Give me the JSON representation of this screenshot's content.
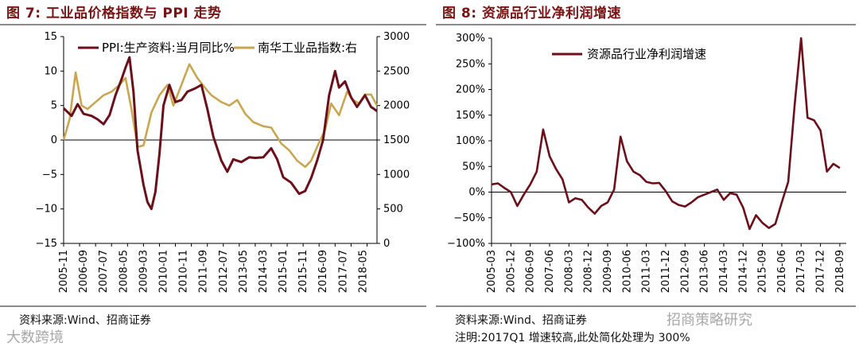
{
  "left": {
    "title": "图 7:  工业品价格指数与 PPI 走势",
    "source": "资料来源:Wind、招商证券",
    "watermark": "大数跨境"
  },
  "right": {
    "title": "图 8:  资源品行业净利润增速",
    "source": "资料来源:Wind、招商证券",
    "note": "注明:2017Q1 增速较高,此处简化处理为 300%",
    "watermark": "招商策略研究"
  },
  "colors": {
    "ppi": "#6b0f1a",
    "nanhua": "#c9a650",
    "profit": "#6b0f1a",
    "title": "#7a1414"
  },
  "chart_data": [
    {
      "type": "line",
      "title": "图 7:  工业品价格指数与 PPI 走势",
      "xlabel": "",
      "x_ticks": [
        "2005-11",
        "2006-07",
        "2007-03",
        "2007-11",
        "2008-07",
        "2009-03",
        "2009-11",
        "2010-07",
        "2011-03",
        "2011-11",
        "2012-07",
        "2013-03",
        "2013-11",
        "2014-07",
        "2015-03",
        "2015-11",
        "2016-07",
        "2017-03",
        "2017-11",
        "2018-07"
      ],
      "x_tick_labels": [
        "2005-11",
        "2006-09",
        "2007-07",
        "2008-05",
        "2009-03",
        "2010-01",
        "2010-11",
        "2011-09",
        "2012-07",
        "2013-05",
        "2014-03",
        "2015-01",
        "2015-11",
        "2016-09",
        "2017-07",
        "2018-05"
      ],
      "x_range": [
        "2005-11",
        "2018-12"
      ],
      "left_axis": {
        "ylim": [
          -15,
          15
        ],
        "ticks": [
          "15",
          "10",
          "5",
          "0",
          "−5",
          "−10",
          "−15"
        ]
      },
      "right_axis": {
        "ylim": [
          0,
          3000
        ],
        "ticks": [
          "3000",
          "2500",
          "2000",
          "1500",
          "1000",
          "500",
          "0"
        ]
      },
      "legend": "top-left",
      "series": [
        {
          "name": "PPI:生产资料:当月同比%",
          "axis": "left",
          "points": [
            [
              "2005-11",
              4.6
            ],
            [
              "2006-03",
              3.5
            ],
            [
              "2006-06",
              5.2
            ],
            [
              "2006-09",
              3.8
            ],
            [
              "2007-01",
              3.5
            ],
            [
              "2007-04",
              3.0
            ],
            [
              "2007-07",
              2.3
            ],
            [
              "2007-10",
              3.6
            ],
            [
              "2008-01",
              6.5
            ],
            [
              "2008-04",
              8.8
            ],
            [
              "2008-06",
              10.5
            ],
            [
              "2008-08",
              12.0
            ],
            [
              "2008-10",
              7.0
            ],
            [
              "2008-12",
              -1.5
            ],
            [
              "2009-03",
              -6.5
            ],
            [
              "2009-05",
              -9.0
            ],
            [
              "2009-07",
              -10.0
            ],
            [
              "2009-09",
              -7.5
            ],
            [
              "2009-11",
              -2.0
            ],
            [
              "2010-01",
              5.0
            ],
            [
              "2010-04",
              8.0
            ],
            [
              "2010-07",
              5.5
            ],
            [
              "2010-10",
              5.8
            ],
            [
              "2011-01",
              7.0
            ],
            [
              "2011-05",
              7.5
            ],
            [
              "2011-08",
              8.0
            ],
            [
              "2011-11",
              4.5
            ],
            [
              "2012-02",
              0.5
            ],
            [
              "2012-06",
              -3.0
            ],
            [
              "2012-09",
              -4.6
            ],
            [
              "2012-12",
              -2.8
            ],
            [
              "2013-04",
              -3.2
            ],
            [
              "2013-08",
              -2.5
            ],
            [
              "2013-11",
              -2.6
            ],
            [
              "2014-03",
              -2.5
            ],
            [
              "2014-07",
              -1.2
            ],
            [
              "2014-10",
              -2.8
            ],
            [
              "2015-01",
              -5.4
            ],
            [
              "2015-05",
              -6.2
            ],
            [
              "2015-09",
              -7.8
            ],
            [
              "2015-12",
              -7.4
            ],
            [
              "2016-03",
              -5.5
            ],
            [
              "2016-06",
              -3.0
            ],
            [
              "2016-09",
              0.0
            ],
            [
              "2016-12",
              6.5
            ],
            [
              "2017-03",
              10.0
            ],
            [
              "2017-05",
              7.6
            ],
            [
              "2017-08",
              8.5
            ],
            [
              "2017-11",
              6.2
            ],
            [
              "2018-02",
              4.8
            ],
            [
              "2018-06",
              6.5
            ],
            [
              "2018-09",
              4.8
            ],
            [
              "2018-12",
              4.2
            ]
          ]
        },
        {
          "name": "南华工业品指数:右",
          "axis": "right",
          "points": [
            [
              "2005-11",
              1500
            ],
            [
              "2006-02",
              1800
            ],
            [
              "2006-05",
              2480
            ],
            [
              "2006-08",
              2000
            ],
            [
              "2006-11",
              1950
            ],
            [
              "2007-03",
              2050
            ],
            [
              "2007-07",
              2150
            ],
            [
              "2007-11",
              2200
            ],
            [
              "2008-03",
              2300
            ],
            [
              "2008-06",
              2400
            ],
            [
              "2008-09",
              1950
            ],
            [
              "2008-12",
              1400
            ],
            [
              "2009-03",
              1420
            ],
            [
              "2009-07",
              1900
            ],
            [
              "2009-11",
              2150
            ],
            [
              "2010-03",
              2300
            ],
            [
              "2010-06",
              2000
            ],
            [
              "2010-10",
              2300
            ],
            [
              "2011-02",
              2600
            ],
            [
              "2011-06",
              2400
            ],
            [
              "2011-10",
              2250
            ],
            [
              "2012-01",
              2150
            ],
            [
              "2012-06",
              2050
            ],
            [
              "2012-10",
              2000
            ],
            [
              "2013-02",
              2080
            ],
            [
              "2013-06",
              1880
            ],
            [
              "2013-10",
              1760
            ],
            [
              "2014-03",
              1700
            ],
            [
              "2014-07",
              1680
            ],
            [
              "2014-12",
              1450
            ],
            [
              "2015-04",
              1350
            ],
            [
              "2015-08",
              1200
            ],
            [
              "2015-12",
              1110
            ],
            [
              "2016-03",
              1200
            ],
            [
              "2016-06",
              1400
            ],
            [
              "2016-10",
              1650
            ],
            [
              "2017-01",
              2030
            ],
            [
              "2017-05",
              1860
            ],
            [
              "2017-09",
              2200
            ],
            [
              "2017-12",
              2080
            ],
            [
              "2018-03",
              2030
            ],
            [
              "2018-06",
              2160
            ],
            [
              "2018-09",
              2160
            ],
            [
              "2018-12",
              2000
            ]
          ]
        }
      ]
    },
    {
      "type": "line",
      "title": "图 8:  资源品行业净利润增速",
      "xlabel": "",
      "x_tick_labels": [
        "2005-03",
        "2005-12",
        "2006-09",
        "2007-06",
        "2008-03",
        "2008-12",
        "2009-09",
        "2010-06",
        "2011-03",
        "2011-12",
        "2012-09",
        "2013-06",
        "2014-03",
        "2014-12",
        "2015-09",
        "2016-06",
        "2017-03",
        "2017-12",
        "2018-09"
      ],
      "x_range": [
        "2005-03",
        "2018-12"
      ],
      "ylim": [
        -100,
        300
      ],
      "y_ticks": [
        "300%",
        "250%",
        "200%",
        "150%",
        "100%",
        "50%",
        "0%",
        "−50%",
        "−100%"
      ],
      "legend": "top-left",
      "series": [
        {
          "name": "资源品行业净利润增速",
          "points": [
            [
              "2005-03",
              15
            ],
            [
              "2005-06",
              17
            ],
            [
              "2005-09",
              8
            ],
            [
              "2005-12",
              0
            ],
            [
              "2006-03",
              -27
            ],
            [
              "2006-06",
              -5
            ],
            [
              "2006-09",
              15
            ],
            [
              "2006-12",
              40
            ],
            [
              "2007-03",
              122
            ],
            [
              "2007-06",
              70
            ],
            [
              "2007-09",
              45
            ],
            [
              "2007-12",
              25
            ],
            [
              "2008-03",
              -20
            ],
            [
              "2008-06",
              -12
            ],
            [
              "2008-09",
              -15
            ],
            [
              "2008-12",
              -30
            ],
            [
              "2009-03",
              -42
            ],
            [
              "2009-06",
              -27
            ],
            [
              "2009-09",
              -20
            ],
            [
              "2009-12",
              5
            ],
            [
              "2010-03",
              108
            ],
            [
              "2010-06",
              60
            ],
            [
              "2010-09",
              40
            ],
            [
              "2010-12",
              33
            ],
            [
              "2011-03",
              20
            ],
            [
              "2011-06",
              17
            ],
            [
              "2011-09",
              18
            ],
            [
              "2011-12",
              2
            ],
            [
              "2012-03",
              -18
            ],
            [
              "2012-06",
              -25
            ],
            [
              "2012-09",
              -28
            ],
            [
              "2012-12",
              -20
            ],
            [
              "2013-03",
              -10
            ],
            [
              "2013-06",
              -5
            ],
            [
              "2013-09",
              0
            ],
            [
              "2013-12",
              5
            ],
            [
              "2014-03",
              -15
            ],
            [
              "2014-06",
              -2
            ],
            [
              "2014-09",
              -5
            ],
            [
              "2014-12",
              -30
            ],
            [
              "2015-03",
              -72
            ],
            [
              "2015-06",
              -45
            ],
            [
              "2015-09",
              -60
            ],
            [
              "2015-12",
              -70
            ],
            [
              "2016-03",
              -62
            ],
            [
              "2016-06",
              -20
            ],
            [
              "2016-09",
              20
            ],
            [
              "2016-12",
              170
            ],
            [
              "2017-03",
              300
            ],
            [
              "2017-06",
              145
            ],
            [
              "2017-09",
              140
            ],
            [
              "2017-12",
              120
            ],
            [
              "2018-03",
              40
            ],
            [
              "2018-06",
              55
            ],
            [
              "2018-09",
              47
            ]
          ]
        }
      ]
    }
  ]
}
